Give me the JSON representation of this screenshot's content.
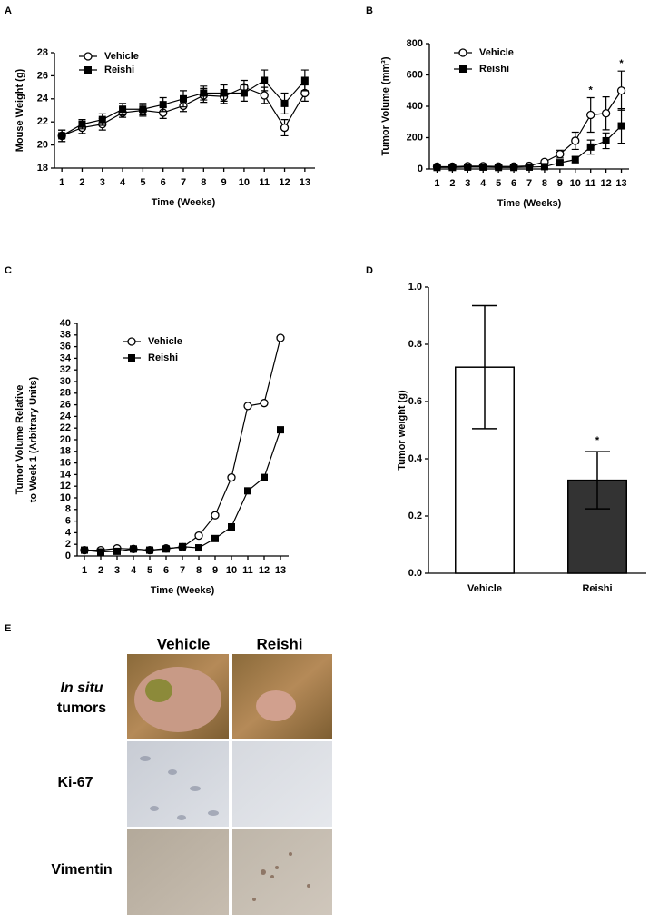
{
  "panel_labels": [
    "A",
    "B",
    "C",
    "D",
    "E"
  ],
  "chart_data": [
    {
      "type": "line",
      "ylabel": [
        "Mouse Weight (g)"
      ],
      "xlabel": "Time (Weeks)",
      "x": [
        1,
        2,
        3,
        4,
        5,
        6,
        7,
        8,
        9,
        10,
        11,
        12,
        13
      ],
      "xlim": [
        0.5,
        13.5
      ],
      "xticks": [
        1,
        2,
        3,
        4,
        5,
        6,
        7,
        8,
        9,
        10,
        11,
        12,
        13
      ],
      "ylim": [
        18,
        28
      ],
      "yticks": [
        18,
        20,
        22,
        24,
        26,
        28
      ],
      "legend": "upper left",
      "series": [
        {
          "name": "Vehicle",
          "color": "#000000",
          "marker": "open-circle",
          "values": [
            20.8,
            21.5,
            21.8,
            22.8,
            23.0,
            22.8,
            23.4,
            24.3,
            24.2,
            25.0,
            24.3,
            21.5,
            24.5
          ],
          "errors": [
            0.5,
            0.5,
            0.5,
            0.4,
            0.5,
            0.5,
            0.5,
            0.6,
            0.6,
            0.6,
            0.7,
            0.7,
            0.7
          ]
        },
        {
          "name": "Reishi",
          "color": "#000000",
          "marker": "filled-square",
          "values": [
            20.8,
            21.8,
            22.2,
            23.1,
            23.1,
            23.5,
            24.0,
            24.5,
            24.5,
            24.5,
            25.6,
            23.6,
            25.6
          ],
          "errors": [
            0.5,
            0.4,
            0.5,
            0.5,
            0.5,
            0.6,
            0.7,
            0.6,
            0.7,
            0.7,
            0.9,
            0.9,
            0.9
          ]
        }
      ]
    },
    {
      "type": "line",
      "ylabel": [
        "Tumor Volume (mm³)"
      ],
      "xlabel": "Time (Weeks)",
      "x": [
        1,
        2,
        3,
        4,
        5,
        6,
        7,
        8,
        9,
        10,
        11,
        12,
        13
      ],
      "xlim": [
        0.5,
        13.5
      ],
      "xticks": [
        1,
        2,
        3,
        4,
        5,
        6,
        7,
        8,
        9,
        10,
        11,
        12,
        13
      ],
      "ylim": [
        0,
        800
      ],
      "yticks": [
        0,
        200,
        400,
        600,
        800
      ],
      "legend": "upper left",
      "series": [
        {
          "name": "Vehicle",
          "color": "#000000",
          "marker": "open-circle",
          "values": [
            15,
            15,
            18,
            18,
            16,
            16,
            20,
            45,
            95,
            180,
            345,
            355,
            500
          ],
          "errors": [
            5,
            5,
            5,
            5,
            5,
            5,
            5,
            10,
            25,
            55,
            110,
            105,
            125
          ]
        },
        {
          "name": "Reishi",
          "color": "#000000",
          "marker": "filled-square",
          "values": [
            10,
            10,
            12,
            12,
            10,
            10,
            12,
            15,
            40,
            60,
            140,
            180,
            275
          ],
          "errors": [
            5,
            5,
            5,
            5,
            5,
            5,
            5,
            8,
            15,
            20,
            45,
            50,
            110
          ]
        }
      ],
      "annotations": [
        {
          "text": "*",
          "x": 11
        },
        {
          "text": "*",
          "x": 13
        }
      ]
    },
    {
      "type": "line",
      "ylabel": [
        "Tumor Volume Relative",
        "to Week 1 (Arbitrary Units)"
      ],
      "xlabel": "Time (Weeks)",
      "x": [
        1,
        2,
        3,
        4,
        5,
        6,
        7,
        8,
        9,
        10,
        11,
        12,
        13
      ],
      "xlim": [
        0.5,
        13.5
      ],
      "xticks": [
        1,
        2,
        3,
        4,
        5,
        6,
        7,
        8,
        9,
        10,
        11,
        12,
        13
      ],
      "ylim": [
        0,
        40
      ],
      "yticks": [
        0,
        2,
        4,
        6,
        8,
        10,
        12,
        14,
        16,
        18,
        20,
        22,
        24,
        26,
        28,
        30,
        32,
        34,
        36,
        38,
        40
      ],
      "legend": "upper left",
      "series": [
        {
          "name": "Vehicle",
          "color": "#000000",
          "marker": "open-circle",
          "values": [
            1,
            1,
            1.3,
            1.2,
            1,
            1.3,
            1.5,
            3.5,
            7,
            13.5,
            25.8,
            26.3,
            37.5
          ]
        },
        {
          "name": "Reishi",
          "color": "#000000",
          "marker": "filled-square",
          "values": [
            1,
            0.7,
            0.8,
            1.2,
            1,
            1.2,
            1.6,
            1.4,
            3,
            5,
            11.2,
            13.5,
            21.7
          ]
        }
      ]
    },
    {
      "type": "bar",
      "ylabel": [
        "Tumor weight (g)"
      ],
      "categories": [
        "Vehicle",
        "Reishi"
      ],
      "values": [
        0.72,
        0.325
      ],
      "errors": [
        0.215,
        0.1
      ],
      "colors": [
        "#ffffff",
        "#333333"
      ],
      "ylim": [
        0,
        1
      ],
      "yticks": [
        {
          "value": 0,
          "label": "0.0"
        },
        0.2,
        0.4,
        0.6,
        0.8,
        {
          "value": 1,
          "label": "1.0"
        }
      ],
      "annotations": [
        {
          "text": "*",
          "x": "Reishi"
        }
      ]
    }
  ],
  "panel_e": {
    "columns": [
      "Vehicle",
      "Reishi"
    ],
    "row_labels": [
      [
        "In situ",
        "tumors"
      ],
      [
        "Ki-67"
      ],
      [
        "Vimentin"
      ]
    ]
  }
}
